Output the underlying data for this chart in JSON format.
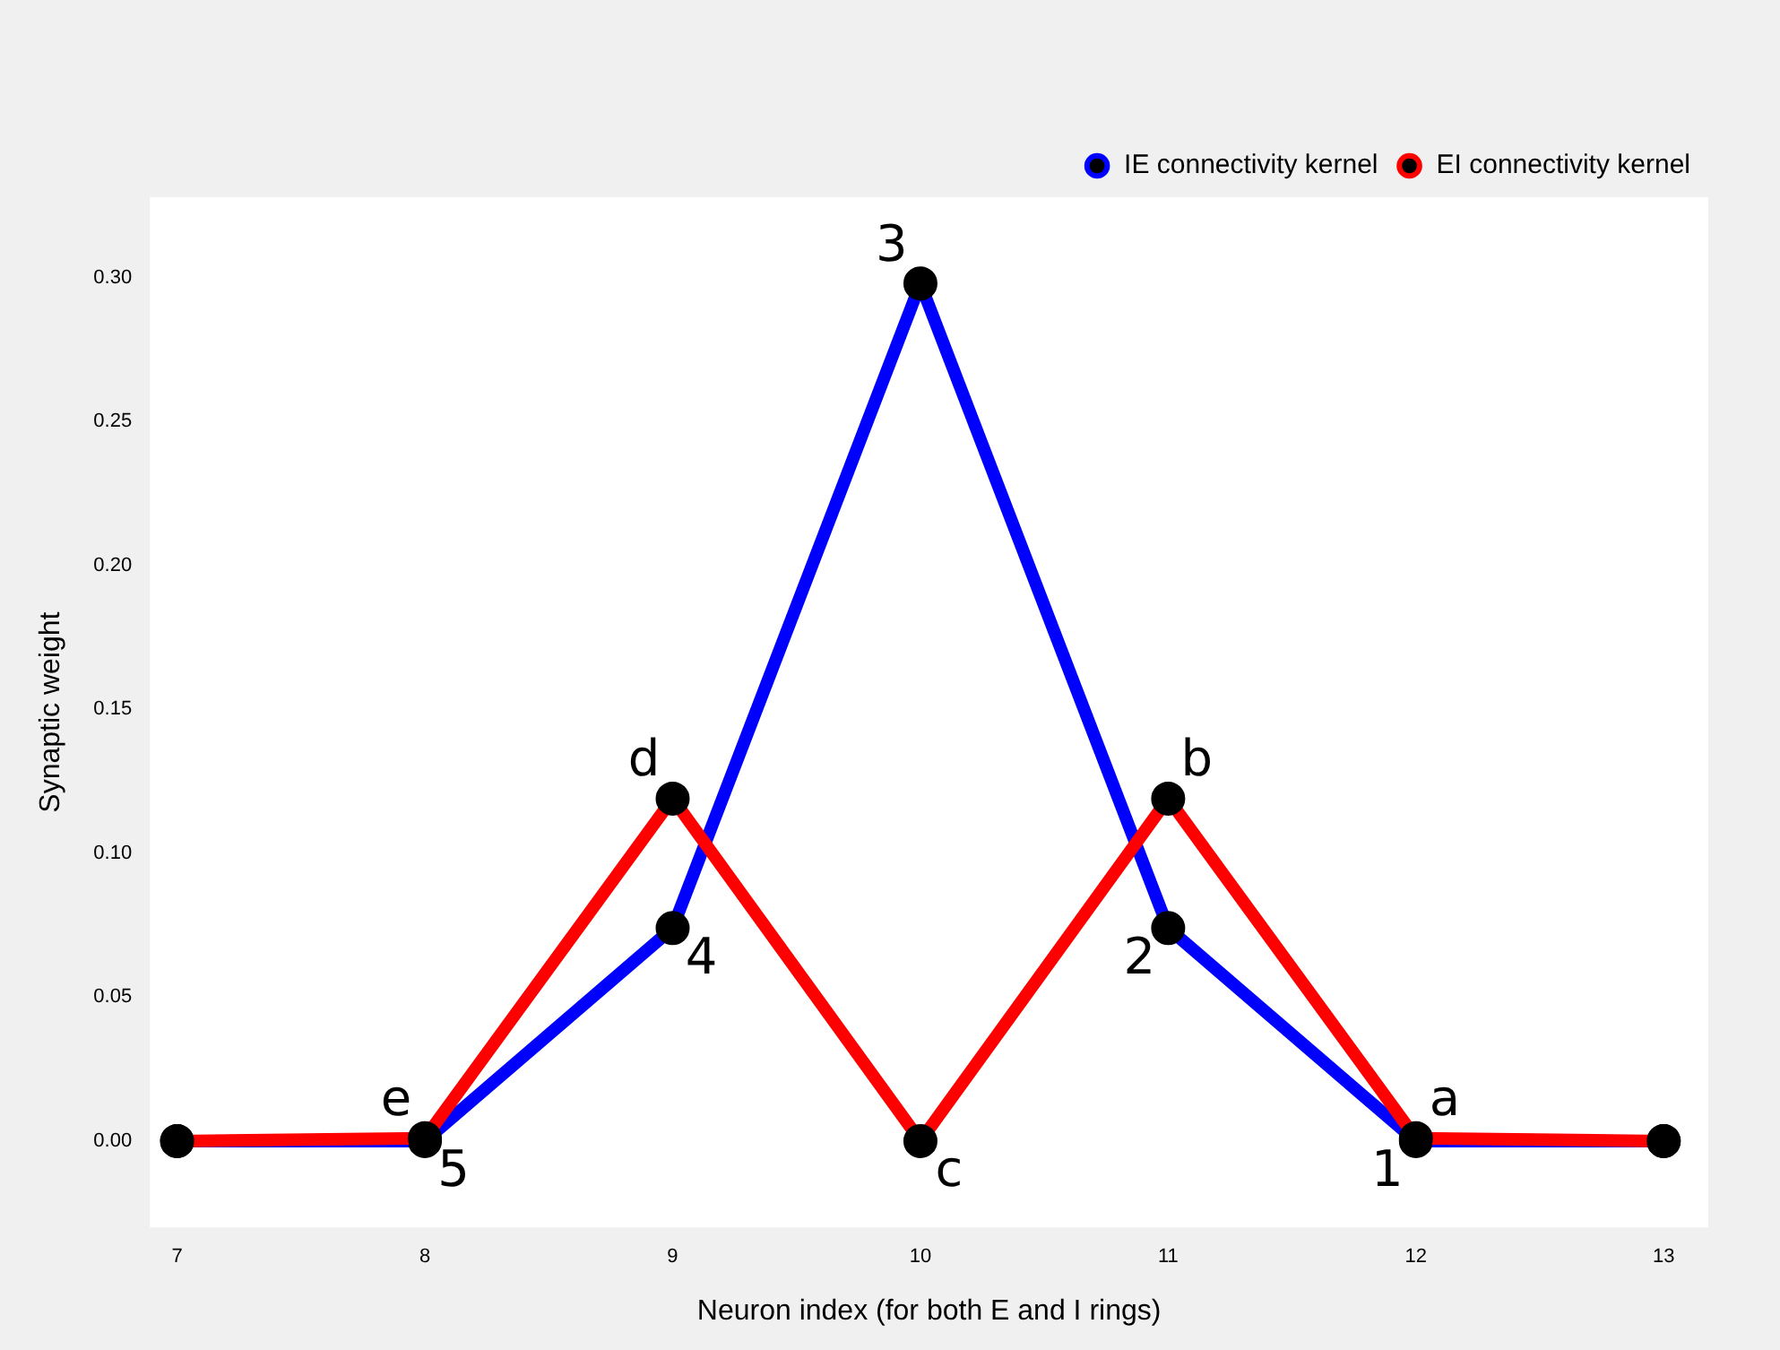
{
  "chart_data": {
    "type": "line",
    "xlabel": "Neuron index (for both E and I rings)",
    "ylabel": "Synaptic weight",
    "x": [
      7,
      8,
      9,
      10,
      11,
      12,
      13
    ],
    "series": [
      {
        "name": "IE connectivity kernel",
        "color": "#0000ff",
        "values": [
          0,
          0,
          0.074,
          0.298,
          0.074,
          0,
          0
        ]
      },
      {
        "name": "EI connectivity kernel",
        "color": "#ff0000",
        "values": [
          0,
          0.001,
          0.119,
          0,
          0.119,
          0.001,
          0
        ]
      }
    ],
    "xlim": [
      6.89,
      13.18
    ],
    "xticks": [
      7,
      8,
      9,
      10,
      11,
      12,
      13
    ],
    "ylim": [
      -0.03,
      0.328
    ],
    "yticks": [
      {
        "value": 0,
        "label": "0.00"
      },
      {
        "value": 0.05,
        "label": "0.05"
      },
      {
        "value": 0.1,
        "label": "0.10"
      },
      {
        "value": 0.15,
        "label": "0.15"
      },
      {
        "value": 0.2,
        "label": "0.20"
      },
      {
        "value": 0.25,
        "label": "0.25"
      },
      {
        "value": 0.3,
        "label": "0.30"
      }
    ],
    "grid": false,
    "legend": "top right",
    "marker": "circle",
    "line_style": "solid",
    "annotations": [
      {
        "text": "1",
        "x": 12,
        "y": 0
      },
      {
        "text": "2",
        "x": 11,
        "y": 0.074
      },
      {
        "text": "3",
        "x": 10,
        "y": 0.298
      },
      {
        "text": "4",
        "x": 9,
        "y": 0.074
      },
      {
        "text": "5",
        "x": 8,
        "y": 0
      },
      {
        "text": "a",
        "x": 12,
        "y": 0.001
      },
      {
        "text": "b",
        "x": 11,
        "y": 0.119
      },
      {
        "text": "c",
        "x": 10,
        "y": 0
      },
      {
        "text": "d",
        "x": 9,
        "y": 0.119
      },
      {
        "text": "e",
        "x": 8,
        "y": 0.001
      }
    ]
  }
}
